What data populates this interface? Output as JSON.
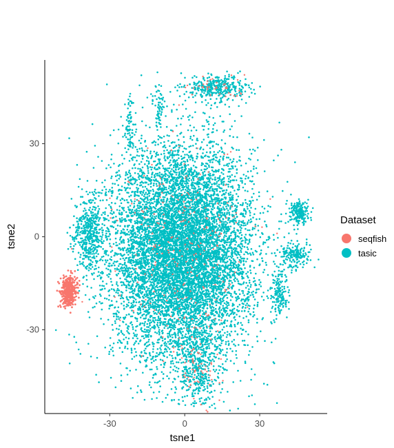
{
  "chart_data": {
    "type": "scatter",
    "title": "",
    "xlabel": "tsne1",
    "ylabel": "tsne2",
    "xlim": [
      -56,
      57
    ],
    "ylim": [
      -57,
      57
    ],
    "x_ticks": [
      -30,
      0,
      30
    ],
    "y_ticks": [
      -30,
      0,
      30
    ],
    "x_tick_labels": [
      "-30",
      "0",
      "30"
    ],
    "y_tick_labels": [
      "-30",
      "0",
      "30"
    ],
    "grid": false,
    "legend": {
      "title": "Dataset",
      "position": "right"
    },
    "series": [
      {
        "name": "seqfish",
        "color": "#F8766D",
        "clusters": [
          {
            "label": "seqfish cluster",
            "cx": -46.5,
            "cy": -17.5,
            "sx": 1.6,
            "sy": 2.4,
            "n": 400
          }
        ],
        "scattered_points": 220
      },
      {
        "name": "tasic",
        "color": "#00BFC4",
        "clusters": [
          {
            "label": "main blob",
            "cx": -1,
            "cy": -5,
            "sx": 14,
            "sy": 17,
            "n": 9000
          },
          {
            "label": "top-right streak",
            "cx": 13,
            "cy": 48,
            "sx": 6,
            "sy": 2,
            "n": 350
          },
          {
            "label": "right small cluster",
            "cx": 46,
            "cy": 8,
            "sx": 1.8,
            "sy": 1.8,
            "n": 200
          },
          {
            "label": "right stripe",
            "cx": 44.5,
            "cy": -6,
            "sx": 3,
            "sy": 2,
            "n": 180
          },
          {
            "label": "right lower strip",
            "cx": 38,
            "cy": -18,
            "sx": 1.5,
            "sy": 4,
            "n": 160
          },
          {
            "label": "left band",
            "cx": -38,
            "cy": 1,
            "sx": 3,
            "sy": 6,
            "n": 450
          },
          {
            "label": "bottom tail",
            "cx": 5,
            "cy": -42,
            "sx": 4,
            "sy": 6,
            "n": 350
          },
          {
            "label": "upper left strand",
            "cx": -22,
            "cy": 35,
            "sx": 1.2,
            "sy": 5,
            "n": 80
          },
          {
            "label": "upper strand",
            "cx": -10,
            "cy": 42,
            "sx": 1.2,
            "sy": 4,
            "n": 60
          }
        ]
      }
    ]
  }
}
